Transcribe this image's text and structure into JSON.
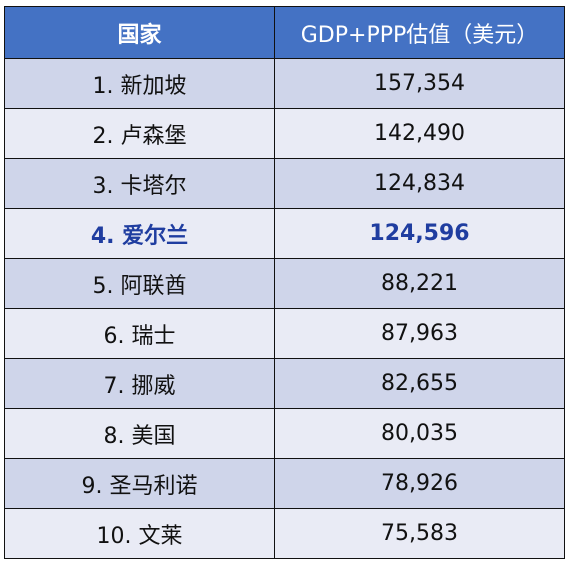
{
  "table": {
    "headers": [
      "国家",
      "GDP+PPP估值（美元）"
    ],
    "header_bg": "#4472c4",
    "row_bg_odd": "#cfd5ea",
    "row_bg_even": "#e9ebf5",
    "highlight_color": "#1f3da0",
    "rows": [
      {
        "country": "1. 新加坡",
        "value": "157,354"
      },
      {
        "country": "2. 卢森堡",
        "value": "142,490"
      },
      {
        "country": "3. 卡塔尔",
        "value": "124,834"
      },
      {
        "country": "4. 爱尔兰",
        "value": "124,596",
        "highlight": true
      },
      {
        "country": "5. 阿联酋",
        "value": "88,221"
      },
      {
        "country": "6. 瑞士",
        "value": "87,963"
      },
      {
        "country": "7. 挪威",
        "value": "82,655"
      },
      {
        "country": "8. 美国",
        "value": "80,035"
      },
      {
        "country": "9. 圣马利诺",
        "value": "78,926"
      },
      {
        "country": "10. 文莱",
        "value": "75,583"
      }
    ]
  }
}
